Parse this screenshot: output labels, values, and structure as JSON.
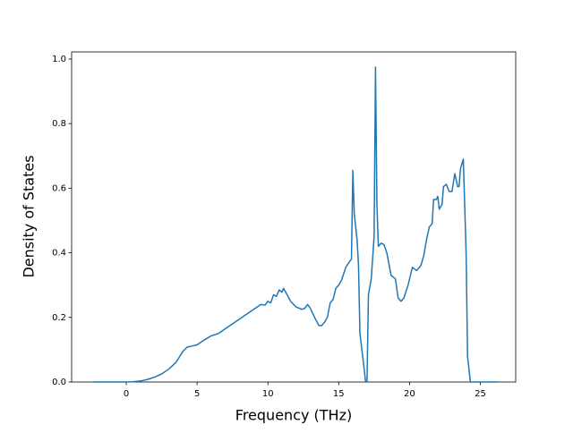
{
  "chart_data": {
    "type": "line",
    "xlabel": "Frequency (THz)",
    "ylabel": "Density of States",
    "x": [
      -2.4,
      -1,
      0,
      0.5,
      1,
      1.5,
      2,
      2.5,
      3,
      3.5,
      4,
      4.3,
      4.7,
      5,
      5.5,
      6,
      6.5,
      7,
      7.5,
      8,
      8.5,
      9,
      9.5,
      9.8,
      10,
      10.2,
      10.4,
      10.6,
      10.8,
      11,
      11.1,
      11.3,
      11.6,
      12,
      12.4,
      12.6,
      12.8,
      13,
      13.3,
      13.6,
      13.8,
      14,
      14.2,
      14.4,
      14.6,
      14.8,
      15,
      15.2,
      15.5,
      15.8,
      15.9,
      16,
      16.1,
      16.3,
      16.4,
      16.5,
      16.8,
      16.9,
      17,
      17.1,
      17.3,
      17.5,
      17.6,
      17.7,
      17.8,
      18,
      18.2,
      18.4,
      18.7,
      19,
      19.2,
      19.4,
      19.6,
      19.9,
      20.2,
      20.5,
      20.8,
      21,
      21.2,
      21.4,
      21.6,
      21.7,
      21.9,
      22,
      22.1,
      22.3,
      22.4,
      22.6,
      22.8,
      23,
      23.2,
      23.4,
      23.5,
      23.6,
      23.8,
      24,
      24.1,
      24.3,
      25,
      26.2
    ],
    "series": [
      {
        "name": "Density of States",
        "color": "#1f77b4",
        "values": [
          0,
          0,
          0,
          0.001,
          0.003,
          0.008,
          0.015,
          0.025,
          0.04,
          0.06,
          0.095,
          0.108,
          0.112,
          0.115,
          0.13,
          0.143,
          0.15,
          0.165,
          0.18,
          0.195,
          0.21,
          0.225,
          0.24,
          0.238,
          0.25,
          0.245,
          0.27,
          0.265,
          0.285,
          0.278,
          0.29,
          0.275,
          0.25,
          0.232,
          0.225,
          0.228,
          0.24,
          0.228,
          0.2,
          0.175,
          0.175,
          0.185,
          0.2,
          0.245,
          0.255,
          0.29,
          0.3,
          0.315,
          0.355,
          0.375,
          0.38,
          0.655,
          0.52,
          0.44,
          0.36,
          0.15,
          0.04,
          0,
          0,
          0.27,
          0.32,
          0.45,
          0.975,
          0.55,
          0.42,
          0.43,
          0.425,
          0.4,
          0.33,
          0.32,
          0.26,
          0.25,
          0.26,
          0.3,
          0.355,
          0.345,
          0.36,
          0.39,
          0.44,
          0.48,
          0.49,
          0.565,
          0.565,
          0.575,
          0.535,
          0.55,
          0.605,
          0.612,
          0.59,
          0.59,
          0.645,
          0.605,
          0.605,
          0.66,
          0.69,
          0.4,
          0.08,
          0,
          0,
          0
        ]
      }
    ],
    "xlim": [
      -3.86,
      27.5
    ],
    "ylim": [
      0,
      1.022
    ],
    "xticks": [
      0,
      5,
      10,
      15,
      20,
      25
    ],
    "yticks": [
      {
        "value": 0,
        "label": "0.0"
      },
      0.2,
      0.4,
      0.6,
      0.8,
      {
        "value": 1,
        "label": "1.0"
      }
    ]
  }
}
